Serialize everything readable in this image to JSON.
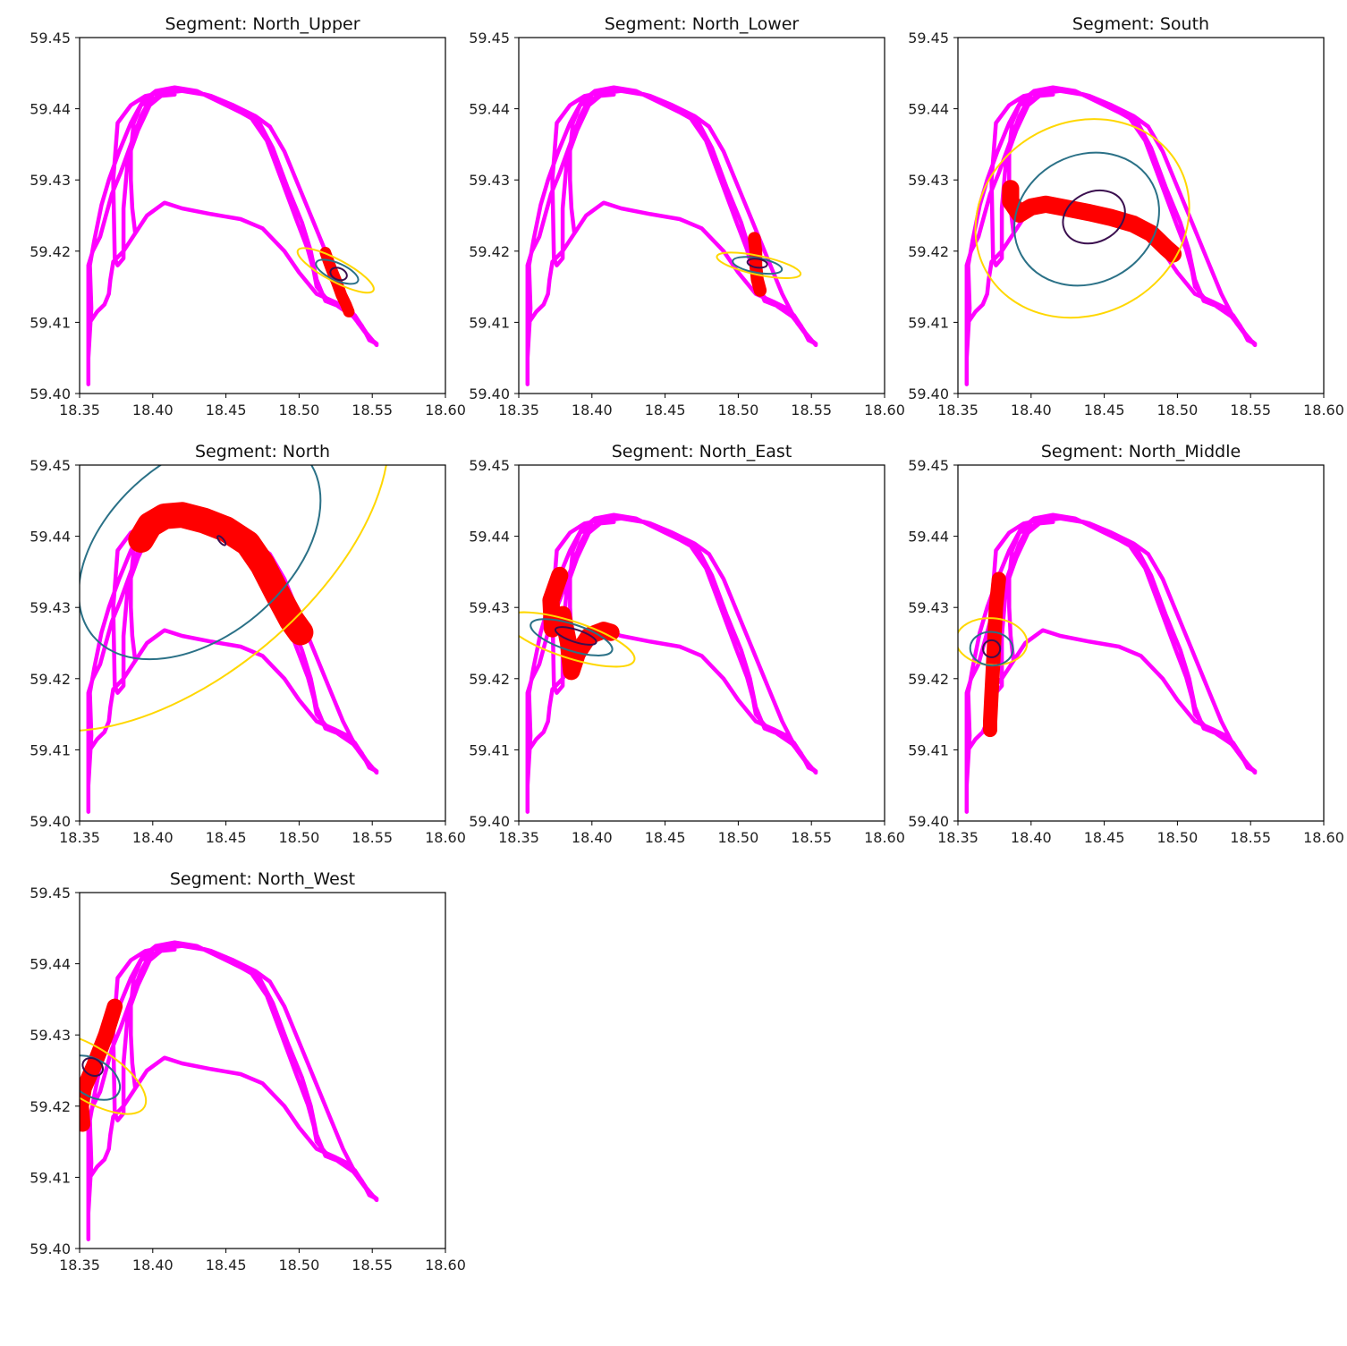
{
  "chart_data": {
    "type": "scatter",
    "description_free": true,
    "xlim": [
      18.35,
      18.6
    ],
    "ylim": [
      59.4,
      59.45
    ],
    "xticks": [
      "18.35",
      "18.40",
      "18.45",
      "18.50",
      "18.55",
      "18.60"
    ],
    "yticks": [
      "59.40",
      "59.41",
      "59.42",
      "59.43",
      "59.44",
      "59.45"
    ],
    "colors": {
      "track": "#ff00ff",
      "segment": "#ff0000",
      "ellipse_outer": "#ffd700",
      "ellipse_middle": "#2b7187",
      "ellipse_inner": "#3b0f4f"
    },
    "track": [
      [
        18.356,
        59.4013
      ],
      [
        18.356,
        59.406
      ],
      [
        18.357,
        59.41
      ],
      [
        18.362,
        59.4115
      ],
      [
        18.367,
        59.4125
      ],
      [
        18.37,
        59.414
      ],
      [
        18.371,
        59.416
      ],
      [
        18.373,
        59.4185
      ],
      [
        18.38,
        59.42
      ],
      [
        18.388,
        59.4225
      ],
      [
        18.396,
        59.425
      ],
      [
        18.408,
        59.4268
      ],
      [
        18.42,
        59.426
      ],
      [
        18.44,
        59.4252
      ],
      [
        18.46,
        59.4245
      ],
      [
        18.475,
        59.4232
      ],
      [
        18.49,
        59.42
      ],
      [
        18.5,
        59.417
      ],
      [
        18.512,
        59.414
      ],
      [
        18.525,
        59.4128
      ],
      [
        18.535,
        59.4118
      ],
      [
        18.543,
        59.4095
      ],
      [
        18.548,
        59.4075
      ],
      [
        18.553,
        59.407
      ],
      [
        18.553,
        59.407
      ],
      [
        18.548,
        59.4078
      ],
      [
        18.54,
        59.41
      ],
      [
        18.53,
        59.414
      ],
      [
        18.52,
        59.419
      ],
      [
        18.51,
        59.424
      ],
      [
        18.5,
        59.429
      ],
      [
        18.49,
        59.434
      ],
      [
        18.48,
        59.4375
      ],
      [
        18.47,
        59.439
      ],
      [
        18.455,
        59.4405
      ],
      [
        18.44,
        59.4418
      ],
      [
        18.425,
        59.4426
      ],
      [
        18.412,
        59.4428
      ],
      [
        18.4,
        59.442
      ],
      [
        18.392,
        59.439
      ],
      [
        18.385,
        59.435
      ],
      [
        18.378,
        59.431
      ],
      [
        18.372,
        59.428
      ],
      [
        18.368,
        59.425
      ],
      [
        18.364,
        59.422
      ],
      [
        18.359,
        59.42
      ],
      [
        18.356,
        59.418
      ],
      [
        18.356,
        59.41
      ],
      [
        18.356,
        59.4013
      ],
      [
        18.356,
        59.405
      ],
      [
        18.358,
        59.412
      ],
      [
        18.357,
        59.418
      ],
      [
        18.36,
        59.4215
      ],
      [
        18.365,
        59.4265
      ],
      [
        18.37,
        59.43
      ],
      [
        18.377,
        59.434
      ],
      [
        18.385,
        59.438
      ],
      [
        18.393,
        59.441
      ],
      [
        18.402,
        59.4425
      ],
      [
        18.415,
        59.443
      ],
      [
        18.43,
        59.4425
      ],
      [
        18.445,
        59.441
      ],
      [
        18.46,
        59.4395
      ],
      [
        18.473,
        59.438
      ],
      [
        18.482,
        59.4345
      ],
      [
        18.492,
        59.429
      ],
      [
        18.502,
        59.424
      ],
      [
        18.508,
        59.42
      ],
      [
        18.512,
        59.416
      ],
      [
        18.518,
        59.413
      ],
      [
        18.528,
        59.4122
      ],
      [
        18.538,
        59.411
      ],
      [
        18.546,
        59.4085
      ],
      [
        18.553,
        59.4068
      ],
      [
        18.547,
        59.4082
      ],
      [
        18.537,
        59.4108
      ],
      [
        18.527,
        59.4122
      ],
      [
        18.518,
        59.4135
      ],
      [
        18.512,
        59.415
      ],
      [
        18.51,
        59.4172
      ],
      [
        18.506,
        59.4202
      ],
      [
        18.498,
        59.4245
      ],
      [
        18.488,
        59.43
      ],
      [
        18.478,
        59.4355
      ],
      [
        18.467,
        59.4388
      ],
      [
        18.45,
        59.4408
      ],
      [
        18.435,
        59.442
      ],
      [
        18.42,
        59.4425
      ],
      [
        18.408,
        59.4422
      ],
      [
        18.398,
        59.4405
      ],
      [
        18.39,
        59.437
      ],
      [
        18.383,
        59.433
      ],
      [
        18.38,
        59.426
      ],
      [
        18.38,
        59.419
      ],
      [
        18.376,
        59.418
      ],
      [
        18.374,
        59.419
      ],
      [
        18.373,
        59.43
      ],
      [
        18.376,
        59.438
      ],
      [
        18.385,
        59.4405
      ],
      [
        18.395,
        59.4418
      ],
      [
        18.405,
        59.4422
      ],
      [
        18.415,
        59.442
      ],
      [
        18.405,
        59.4418
      ],
      [
        18.392,
        59.4405
      ],
      [
        18.387,
        59.438
      ],
      [
        18.385,
        59.434
      ],
      [
        18.385,
        59.43
      ],
      [
        18.386,
        59.426
      ],
      [
        18.388,
        59.4225
      ]
    ],
    "panels": [
      {
        "title": "Segment: North_Upper",
        "segment": [
          [
            18.518,
            59.4198
          ],
          [
            18.522,
            59.4175
          ],
          [
            18.526,
            59.4155
          ],
          [
            18.529,
            59.4138
          ],
          [
            18.532,
            59.4125
          ],
          [
            18.534,
            59.4115
          ]
        ],
        "segment_width": 8,
        "ellipses": [
          {
            "level": "outer",
            "cx": 18.525,
            "cy": 59.4173,
            "rx": 0.0075,
            "ry": 0.006,
            "angle": -62
          },
          {
            "level": "middle",
            "cx": 18.526,
            "cy": 59.4171,
            "rx": 0.0058,
            "ry": 0.0032,
            "angle": -66
          },
          {
            "level": "inner",
            "cx": 18.527,
            "cy": 59.4168,
            "rx": 0.004,
            "ry": 0.0012,
            "angle": -68
          }
        ]
      },
      {
        "title": "Segment: North_Lower",
        "segment": [
          [
            18.511,
            59.4218
          ],
          [
            18.512,
            59.42
          ],
          [
            18.512,
            59.418
          ],
          [
            18.513,
            59.416
          ],
          [
            18.515,
            59.4145
          ]
        ],
        "segment_width": 9,
        "ellipses": [
          {
            "level": "outer",
            "cx": 18.514,
            "cy": 59.418,
            "rx": 0.0064,
            "ry": 0.006,
            "angle": -78
          },
          {
            "level": "middle",
            "cx": 18.513,
            "cy": 59.418,
            "rx": 0.005,
            "ry": 0.0035,
            "angle": -80
          },
          {
            "level": "inner",
            "cx": 18.513,
            "cy": 59.4183,
            "rx": 0.003,
            "ry": 0.0014,
            "angle": -82
          }
        ]
      },
      {
        "title": "Segment: South",
        "segment": [
          [
            18.386,
            59.4288
          ],
          [
            18.386,
            59.427
          ],
          [
            18.392,
            59.4252
          ],
          [
            18.4,
            59.4262
          ],
          [
            18.41,
            59.4266
          ],
          [
            18.425,
            59.426
          ],
          [
            18.44,
            59.4254
          ],
          [
            18.455,
            59.4247
          ],
          [
            18.47,
            59.4238
          ],
          [
            18.482,
            59.4225
          ],
          [
            18.492,
            59.4205
          ],
          [
            18.497,
            59.4196
          ]
        ],
        "segment_width": 12,
        "ellipses": [
          {
            "level": "outer",
            "cx": 18.435,
            "cy": 59.4246,
            "rx": 0.075,
            "ry": 0.0135,
            "angle": -28
          },
          {
            "level": "middle",
            "cx": 18.438,
            "cy": 59.4245,
            "rx": 0.051,
            "ry": 0.009,
            "angle": -28
          },
          {
            "level": "inner",
            "cx": 18.443,
            "cy": 59.4248,
            "rx": 0.022,
            "ry": 0.0035,
            "angle": -26
          }
        ]
      },
      {
        "title": "Segment: North",
        "segment": [
          [
            18.392,
            59.4395
          ],
          [
            18.398,
            59.4416
          ],
          [
            18.408,
            59.4428
          ],
          [
            18.42,
            59.443
          ],
          [
            18.435,
            59.4422
          ],
          [
            18.45,
            59.441
          ],
          [
            18.465,
            59.439
          ],
          [
            18.475,
            59.436
          ],
          [
            18.485,
            59.432
          ],
          [
            18.495,
            59.4282
          ],
          [
            18.501,
            59.4265
          ]
        ],
        "segment_width": 18,
        "ellipses": [
          {
            "level": "outer",
            "cx": 18.42,
            "cy": 59.439,
            "rx": 0.168,
            "ry": 0.0185,
            "angle": -40
          },
          {
            "level": "middle",
            "cx": 18.432,
            "cy": 59.4385,
            "rx": 0.095,
            "ry": 0.0125,
            "angle": -40
          },
          {
            "level": "inner",
            "cx": 18.447,
            "cy": 59.4394,
            "rx": 0.0015,
            "ry": 0.0008,
            "angle": -40
          }
        ]
      },
      {
        "title": "Segment: North_East",
        "segment": [
          [
            18.378,
            59.4345
          ],
          [
            18.372,
            59.431
          ],
          [
            18.373,
            59.427
          ],
          [
            18.38,
            59.429
          ],
          [
            18.384,
            59.425
          ],
          [
            18.386,
            59.421
          ],
          [
            18.39,
            59.4235
          ],
          [
            18.398,
            59.426
          ],
          [
            18.408,
            59.4268
          ],
          [
            18.413,
            59.4265
          ]
        ],
        "segment_width": 12,
        "ellipses": [
          {
            "level": "outer",
            "cx": 18.385,
            "cy": 59.4255,
            "rx": 0.0125,
            "ry": 0.0095,
            "angle": -72
          },
          {
            "level": "middle",
            "cx": 18.386,
            "cy": 59.4258,
            "rx": 0.009,
            "ry": 0.006,
            "angle": -72
          },
          {
            "level": "inner",
            "cx": 18.389,
            "cy": 59.426,
            "rx": 0.0042,
            "ry": 0.003,
            "angle": -72
          }
        ]
      },
      {
        "title": "Segment: North_Middle",
        "segment": [
          [
            18.378,
            59.434
          ],
          [
            18.376,
            59.43
          ],
          [
            18.375,
            59.426
          ],
          [
            18.374,
            59.422
          ],
          [
            18.373,
            59.418
          ],
          [
            18.372,
            59.414
          ],
          [
            18.372,
            59.4128
          ]
        ],
        "segment_width": 10,
        "ellipses": [
          {
            "level": "outer",
            "cx": 18.373,
            "cy": 59.4252,
            "rx": 0.016,
            "ry": 0.005,
            "angle": -86
          },
          {
            "level": "middle",
            "cx": 18.373,
            "cy": 59.4242,
            "rx": 0.0115,
            "ry": 0.003,
            "angle": -86
          },
          {
            "level": "inner",
            "cx": 18.373,
            "cy": 59.4242,
            "rx": 0.0058,
            "ry": 0.0012,
            "angle": -86
          }
        ]
      },
      {
        "title": "Segment: North_West",
        "segment": [
          [
            18.352,
            59.4175
          ],
          [
            18.351,
            59.42
          ],
          [
            18.353,
            59.4225
          ],
          [
            18.36,
            59.4258
          ],
          [
            18.368,
            59.43
          ],
          [
            18.374,
            59.434
          ]
        ],
        "segment_width": 11,
        "ellipses": [
          {
            "level": "outer",
            "cx": 18.357,
            "cy": 59.4246,
            "rx": 0.018,
            "ry": 0.009,
            "angle": -58
          },
          {
            "level": "middle",
            "cx": 18.359,
            "cy": 59.424,
            "rx": 0.0125,
            "ry": 0.0042,
            "angle": -58
          },
          {
            "level": "inner",
            "cx": 18.359,
            "cy": 59.4255,
            "rx": 0.0056,
            "ry": 0.0015,
            "angle": -60
          }
        ]
      }
    ]
  }
}
